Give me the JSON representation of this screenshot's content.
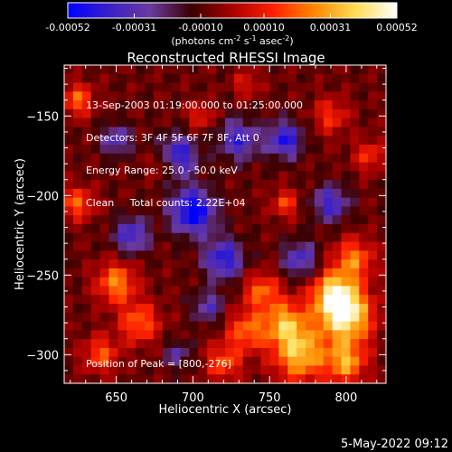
{
  "colorbar": {
    "tick_labels": [
      "-0.00052",
      "-0.00031",
      "-0.00010",
      "0.00010",
      "0.00031",
      "0.00052"
    ],
    "tick_values": [
      -0.00052,
      -0.00031,
      -0.0001,
      0.0001,
      0.00031,
      0.00052
    ],
    "range": [
      -0.00052,
      0.00052
    ],
    "unit_label": "(photons cm",
    "unit_exp1": "-2",
    "unit_mid1": " s",
    "unit_exp2": "-1",
    "unit_mid2": " asec",
    "unit_exp3": "-2",
    "unit_end": ")",
    "colors": [
      "#0000ff",
      "#3a20c8",
      "#6a3aa0",
      "#3a0000",
      "#aa0000",
      "#ff2000",
      "#ff8800",
      "#ffdd55",
      "#ffffff"
    ]
  },
  "chart_data": {
    "type": "heatmap",
    "title": "Reconstructed RHESSI Image",
    "xlabel": "Heliocentric X (arcsec)",
    "ylabel": "Heliocentric Y (arcsec)",
    "xlim": [
      616,
      826
    ],
    "ylim": [
      -318,
      -118
    ],
    "xticks": [
      650,
      700,
      750,
      800
    ],
    "xtick_labels": [
      "650",
      "700",
      "750",
      "800"
    ],
    "yticks": [
      -150,
      -200,
      -250,
      -300
    ],
    "ytick_labels": [
      "-150",
      "-200",
      "-250",
      "-300"
    ],
    "info_lines": [
      "13-Sep-2003 01:19:00.000 to 01:25:00.000",
      "Detectors: 3F 4F 5F 6F 7F 8F, Att 0",
      "Energy Range: 25.0 - 50.0 keV",
      "Clean     Total counts: 2.22E+04"
    ],
    "peak_label": "Position of Peak = [800,-276]",
    "peak": [
      800,
      -276
    ],
    "grid_cols": 36,
    "grid_rows": 36,
    "blobs": [
      {
        "x": 800,
        "y": -276,
        "w": 12,
        "v": 1.0
      },
      {
        "x": 792,
        "y": -262,
        "w": 10,
        "v": 0.85
      },
      {
        "x": 770,
        "y": -300,
        "w": 12,
        "v": 0.8
      },
      {
        "x": 760,
        "y": -280,
        "w": 10,
        "v": 0.7
      },
      {
        "x": 735,
        "y": -285,
        "w": 9,
        "v": 0.55
      },
      {
        "x": 745,
        "y": -260,
        "w": 8,
        "v": 0.55
      },
      {
        "x": 805,
        "y": -240,
        "w": 9,
        "v": 0.6
      },
      {
        "x": 800,
        "y": -305,
        "w": 9,
        "v": 0.7
      },
      {
        "x": 720,
        "y": -305,
        "w": 8,
        "v": 0.5
      },
      {
        "x": 650,
        "y": -255,
        "w": 9,
        "v": 0.65
      },
      {
        "x": 665,
        "y": -280,
        "w": 9,
        "v": 0.55
      },
      {
        "x": 640,
        "y": -300,
        "w": 8,
        "v": 0.5
      },
      {
        "x": 625,
        "y": -205,
        "w": 7,
        "v": 0.55
      },
      {
        "x": 625,
        "y": -140,
        "w": 7,
        "v": 0.55
      },
      {
        "x": 680,
        "y": -180,
        "w": 6,
        "v": 0.35
      },
      {
        "x": 705,
        "y": -150,
        "w": 6,
        "v": 0.35
      },
      {
        "x": 760,
        "y": -205,
        "w": 6,
        "v": 0.45
      },
      {
        "x": 790,
        "y": -150,
        "w": 8,
        "v": 0.4
      },
      {
        "x": 815,
        "y": -175,
        "w": 7,
        "v": 0.4
      },
      {
        "x": 735,
        "y": -130,
        "w": 6,
        "v": 0.3
      },
      {
        "x": 700,
        "y": -210,
        "w": 10,
        "v": -0.9
      },
      {
        "x": 690,
        "y": -175,
        "w": 9,
        "v": -0.7
      },
      {
        "x": 730,
        "y": -165,
        "w": 9,
        "v": -0.6
      },
      {
        "x": 760,
        "y": -165,
        "w": 8,
        "v": -0.7
      },
      {
        "x": 660,
        "y": -225,
        "w": 8,
        "v": -0.6
      },
      {
        "x": 720,
        "y": -240,
        "w": 9,
        "v": -0.7
      },
      {
        "x": 770,
        "y": -240,
        "w": 8,
        "v": -0.55
      },
      {
        "x": 790,
        "y": -205,
        "w": 8,
        "v": -0.6
      },
      {
        "x": 650,
        "y": -165,
        "w": 7,
        "v": -0.5
      },
      {
        "x": 710,
        "y": -270,
        "w": 7,
        "v": -0.45
      },
      {
        "x": 690,
        "y": -300,
        "w": 6,
        "v": -0.4
      }
    ]
  },
  "footer": {
    "timestamp": "5-May-2022 09:12"
  }
}
